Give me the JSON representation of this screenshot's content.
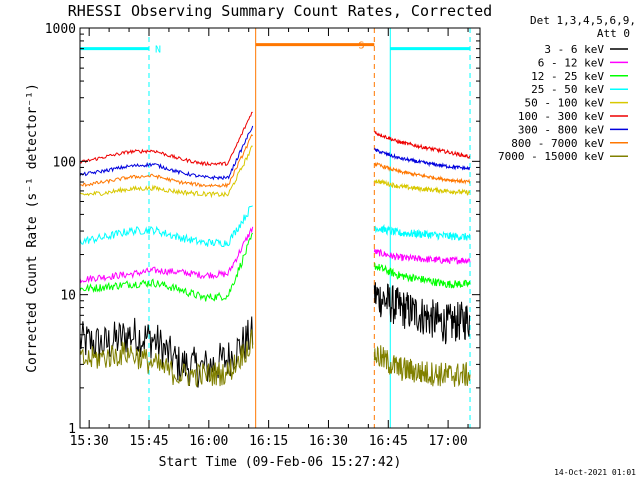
{
  "chart_data": {
    "type": "line",
    "title": "RHESSI Observing Summary Count Rates, Corrected",
    "xlabel": "Start Time (09-Feb-06 15:27:42)",
    "ylabel": "Corrected Count Rate (s⁻¹ detector⁻¹)",
    "ylog": true,
    "ylim": [
      1,
      1000
    ],
    "xlim": [
      "15:27:42",
      "17:08:00"
    ],
    "x_ticks": [
      "15:30",
      "15:45",
      "16:00",
      "16:15",
      "16:30",
      "16:45",
      "17:00"
    ],
    "y_ticks": [
      "1",
      "10",
      "100",
      "1000"
    ],
    "legend_header": [
      "Det 1,3,4,5,6,9,",
      "Att 0"
    ],
    "legend_position": "right",
    "footer": "14-Oct-2021 01:01",
    "segments": [
      {
        "start": "15:27:42",
        "end": "16:11:00"
      },
      {
        "start": "16:41:30",
        "end": "17:05:30"
      }
    ],
    "series": [
      {
        "name": "3 - 6 keV",
        "color": "#000000",
        "values": [
          [
            4.5,
            4.2,
            5.0,
            4.6,
            3.0,
            2.8,
            3.3,
            5.0
          ],
          [
            10.0,
            8.0,
            7.0,
            6.0,
            6.5
          ]
        ]
      },
      {
        "name": "6 - 12 keV",
        "color": "#ff00ff",
        "values": [
          [
            13.0,
            13.6,
            14.2,
            15.2,
            14.8,
            14.0,
            14.3,
            32.0
          ],
          [
            21.0,
            19.0,
            18.5,
            18.0,
            18.2
          ]
        ]
      },
      {
        "name": "12 - 25 keV",
        "color": "#00ff00",
        "values": [
          [
            11.0,
            11.4,
            12.0,
            12.3,
            11.0,
            9.5,
            9.8,
            28.0
          ],
          [
            16.5,
            14.0,
            13.0,
            12.0,
            12.0
          ]
        ]
      },
      {
        "name": "25 - 50 keV",
        "color": "#00ffff",
        "values": [
          [
            25.0,
            27.0,
            30.0,
            30.5,
            27.0,
            24.5,
            24.5,
            47.0
          ],
          [
            32.0,
            29.0,
            28.5,
            27.5,
            27.0
          ]
        ]
      },
      {
        "name": "50 - 100 keV",
        "color": "#d8c800",
        "values": [
          [
            56.0,
            58.0,
            62.0,
            63.0,
            59.0,
            57.0,
            56.0,
            130.0
          ],
          [
            72.0,
            65.0,
            62.0,
            60.0,
            58.0
          ]
        ]
      },
      {
        "name": "100 - 300 keV",
        "color": "#ee0000",
        "values": [
          [
            98.0,
            108.0,
            118.0,
            120.0,
            105.0,
            96.0,
            96.0,
            240.0
          ],
          [
            165.0,
            140.0,
            128.0,
            118.0,
            108.0
          ]
        ]
      },
      {
        "name": "300 - 800 keV",
        "color": "#0000dd",
        "values": [
          [
            79.0,
            85.0,
            92.0,
            95.0,
            83.0,
            76.0,
            75.0,
            185.0
          ],
          [
            122.0,
            106.0,
            98.0,
            92.0,
            88.0
          ]
        ]
      },
      {
        "name": "800 - 7000 keV",
        "color": "#ff7700",
        "values": [
          [
            66.0,
            70.0,
            76.0,
            78.0,
            70.0,
            66.0,
            66.0,
            160.0
          ],
          [
            96.0,
            84.0,
            78.0,
            73.0,
            70.0
          ]
        ]
      },
      {
        "name": "7000 - 15000 keV",
        "color": "#808000",
        "values": [
          [
            3.2,
            3.4,
            3.7,
            3.0,
            2.5,
            2.5,
            2.6,
            4.5
          ],
          [
            3.6,
            2.8,
            2.6,
            2.5,
            2.5
          ]
        ]
      }
    ],
    "annotations": [
      {
        "text": "N",
        "color": "#00ffff",
        "start": "15:27:42",
        "end": "15:45:00",
        "level": 700
      },
      {
        "text": "",
        "color": "#00ffff",
        "start": "16:45:30",
        "end": "17:05:30",
        "level": 700
      },
      {
        "text": "S",
        "color": "#ff7700",
        "start": "16:11:45",
        "end": "16:41:30",
        "level": 750
      }
    ],
    "vlines": [
      {
        "time": "15:27:42",
        "color": "#00ffff",
        "style": "solid"
      },
      {
        "time": "15:45:00",
        "color": "#00ffff",
        "style": "dashed"
      },
      {
        "time": "16:11:45",
        "color": "#ff7700",
        "style": "solid"
      },
      {
        "time": "16:41:30",
        "color": "#ff7700",
        "style": "dashed"
      },
      {
        "time": "16:45:30",
        "color": "#00ffff",
        "style": "solid"
      },
      {
        "time": "17:05:30",
        "color": "#00ffff",
        "style": "dashed"
      }
    ]
  }
}
